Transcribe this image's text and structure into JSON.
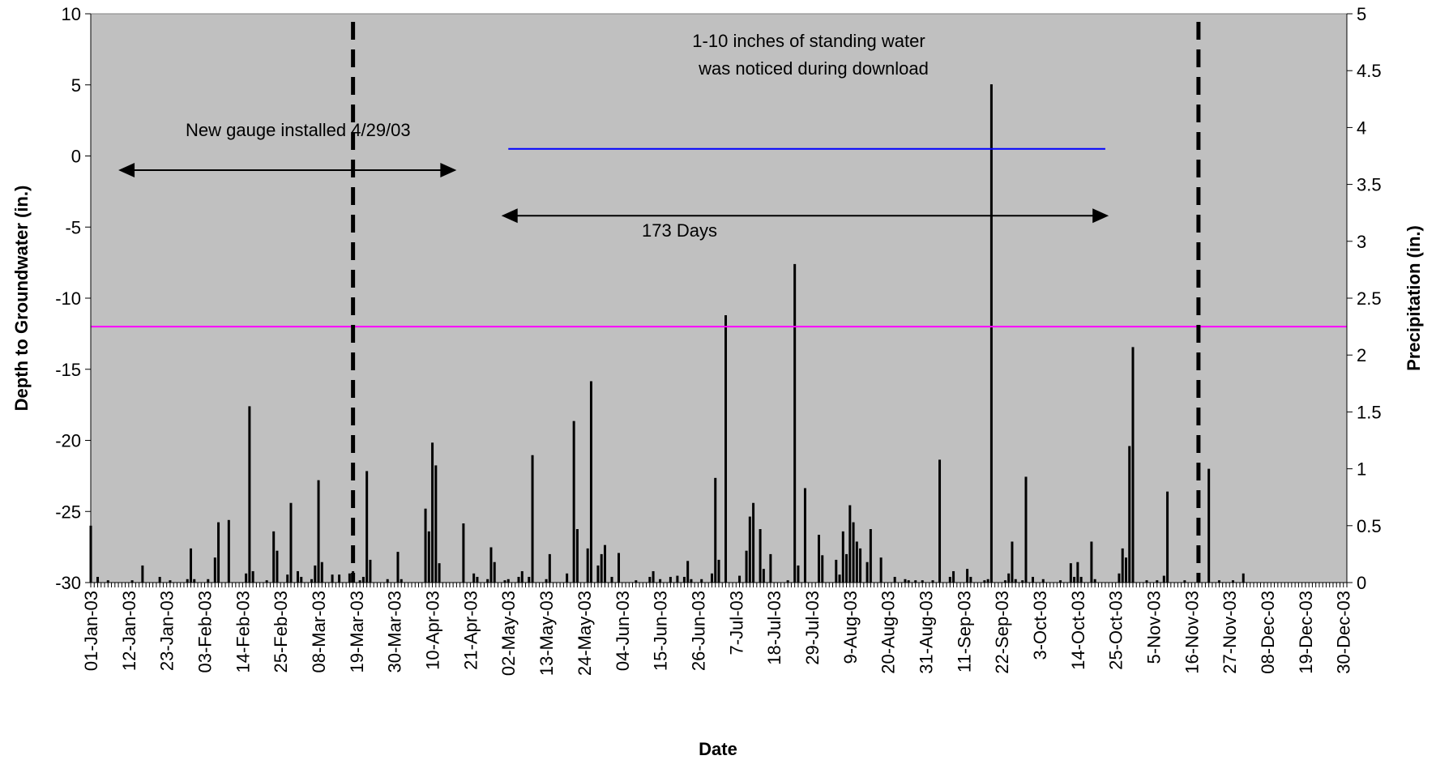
{
  "chart_data": {
    "type": "bar",
    "xlabel": "Date",
    "ylabel_left": "Depth to Groundwater (in.)",
    "ylabel_right": "Precipitation (in.)",
    "y_left_range": [
      -30,
      10
    ],
    "y_left_ticks": [
      "10",
      "5",
      "0",
      "-5",
      "-10",
      "-15",
      "-20",
      "-25",
      "-30"
    ],
    "y_right_range": [
      0,
      5
    ],
    "y_right_ticks": [
      "5",
      "4.5",
      "4",
      "3.5",
      "3",
      "2.5",
      "2",
      "1.5",
      "1",
      "0.5",
      "0"
    ],
    "x_range_days": [
      1,
      365
    ],
    "x_tick_labels": [
      "01-Jan-03",
      "12-Jan-03",
      "23-Jan-03",
      "03-Feb-03",
      "14-Feb-03",
      "25-Feb-03",
      "08-Mar-03",
      "19-Mar-03",
      "30-Mar-03",
      "10-Apr-03",
      "21-Apr-03",
      "02-May-03",
      "13-May-03",
      "24-May-03",
      "04-Jun-03",
      "15-Jun-03",
      "26-Jun-03",
      "7-Jul-03",
      "18-Jul-03",
      "29-Jul-03",
      "9-Aug-03",
      "20-Aug-03",
      "31-Aug-03",
      "11-Sep-03",
      "22-Sep-03",
      "3-Oct-03",
      "14-Oct-03",
      "25-Oct-03",
      "5-Nov-03",
      "16-Nov-03",
      "27-Nov-03",
      "08-Dec-03",
      "19-Dec-03",
      "30-Dec-03"
    ],
    "x_tick_days": [
      1,
      12,
      23,
      34,
      45,
      56,
      67,
      78,
      89,
      100,
      111,
      122,
      133,
      144,
      155,
      166,
      177,
      188,
      199,
      210,
      221,
      232,
      243,
      254,
      265,
      276,
      287,
      298,
      309,
      320,
      331,
      342,
      353,
      364
    ],
    "precipitation": [
      {
        "day": 1,
        "value": 0.5
      },
      {
        "day": 3,
        "value": 0.05
      },
      {
        "day": 6,
        "value": 0.02
      },
      {
        "day": 13,
        "value": 0.02
      },
      {
        "day": 16,
        "value": 0.15
      },
      {
        "day": 21,
        "value": 0.05
      },
      {
        "day": 24,
        "value": 0.02
      },
      {
        "day": 29,
        "value": 0.03
      },
      {
        "day": 30,
        "value": 0.3
      },
      {
        "day": 31,
        "value": 0.03
      },
      {
        "day": 35,
        "value": 0.03
      },
      {
        "day": 37,
        "value": 0.22
      },
      {
        "day": 38,
        "value": 0.53
      },
      {
        "day": 41,
        "value": 0.55
      },
      {
        "day": 46,
        "value": 0.08
      },
      {
        "day": 47,
        "value": 1.55
      },
      {
        "day": 48,
        "value": 0.1
      },
      {
        "day": 52,
        "value": 0.02
      },
      {
        "day": 54,
        "value": 0.45
      },
      {
        "day": 55,
        "value": 0.28
      },
      {
        "day": 58,
        "value": 0.07
      },
      {
        "day": 59,
        "value": 0.7
      },
      {
        "day": 61,
        "value": 0.1
      },
      {
        "day": 62,
        "value": 0.05
      },
      {
        "day": 65,
        "value": 0.03
      },
      {
        "day": 66,
        "value": 0.15
      },
      {
        "day": 67,
        "value": 0.9
      },
      {
        "day": 68,
        "value": 0.18
      },
      {
        "day": 71,
        "value": 0.07
      },
      {
        "day": 73,
        "value": 0.07
      },
      {
        "day": 76,
        "value": 0.08
      },
      {
        "day": 77,
        "value": 0.1
      },
      {
        "day": 79,
        "value": 0.02
      },
      {
        "day": 80,
        "value": 0.05
      },
      {
        "day": 81,
        "value": 0.98
      },
      {
        "day": 82,
        "value": 0.2
      },
      {
        "day": 87,
        "value": 0.03
      },
      {
        "day": 90,
        "value": 0.27
      },
      {
        "day": 91,
        "value": 0.03
      },
      {
        "day": 98,
        "value": 0.65
      },
      {
        "day": 99,
        "value": 0.45
      },
      {
        "day": 100,
        "value": 1.23
      },
      {
        "day": 101,
        "value": 1.03
      },
      {
        "day": 102,
        "value": 0.17
      },
      {
        "day": 109,
        "value": 0.52
      },
      {
        "day": 112,
        "value": 0.08
      },
      {
        "day": 113,
        "value": 0.05
      },
      {
        "day": 116,
        "value": 0.03
      },
      {
        "day": 117,
        "value": 0.31
      },
      {
        "day": 118,
        "value": 0.18
      },
      {
        "day": 121,
        "value": 0.02
      },
      {
        "day": 122,
        "value": 0.03
      },
      {
        "day": 125,
        "value": 0.05
      },
      {
        "day": 126,
        "value": 0.1
      },
      {
        "day": 128,
        "value": 0.05
      },
      {
        "day": 129,
        "value": 1.12
      },
      {
        "day": 133,
        "value": 0.03
      },
      {
        "day": 134,
        "value": 0.25
      },
      {
        "day": 139,
        "value": 0.08
      },
      {
        "day": 141,
        "value": 1.42
      },
      {
        "day": 142,
        "value": 0.47
      },
      {
        "day": 145,
        "value": 0.3
      },
      {
        "day": 146,
        "value": 1.77
      },
      {
        "day": 148,
        "value": 0.15
      },
      {
        "day": 149,
        "value": 0.25
      },
      {
        "day": 150,
        "value": 0.33
      },
      {
        "day": 152,
        "value": 0.05
      },
      {
        "day": 154,
        "value": 0.26
      },
      {
        "day": 159,
        "value": 0.02
      },
      {
        "day": 163,
        "value": 0.05
      },
      {
        "day": 164,
        "value": 0.1
      },
      {
        "day": 166,
        "value": 0.03
      },
      {
        "day": 169,
        "value": 0.05
      },
      {
        "day": 171,
        "value": 0.06
      },
      {
        "day": 173,
        "value": 0.05
      },
      {
        "day": 174,
        "value": 0.19
      },
      {
        "day": 175,
        "value": 0.03
      },
      {
        "day": 178,
        "value": 0.03
      },
      {
        "day": 181,
        "value": 0.08
      },
      {
        "day": 182,
        "value": 0.92
      },
      {
        "day": 183,
        "value": 0.2
      },
      {
        "day": 185,
        "value": 2.35
      },
      {
        "day": 189,
        "value": 0.06
      },
      {
        "day": 191,
        "value": 0.28
      },
      {
        "day": 192,
        "value": 0.58
      },
      {
        "day": 193,
        "value": 0.7
      },
      {
        "day": 195,
        "value": 0.47
      },
      {
        "day": 196,
        "value": 0.12
      },
      {
        "day": 198,
        "value": 0.25
      },
      {
        "day": 203,
        "value": 0.02
      },
      {
        "day": 205,
        "value": 2.8
      },
      {
        "day": 206,
        "value": 0.15
      },
      {
        "day": 208,
        "value": 0.83
      },
      {
        "day": 212,
        "value": 0.42
      },
      {
        "day": 213,
        "value": 0.24
      },
      {
        "day": 217,
        "value": 0.2
      },
      {
        "day": 218,
        "value": 0.07
      },
      {
        "day": 219,
        "value": 0.45
      },
      {
        "day": 220,
        "value": 0.25
      },
      {
        "day": 221,
        "value": 0.68
      },
      {
        "day": 222,
        "value": 0.53
      },
      {
        "day": 223,
        "value": 0.36
      },
      {
        "day": 224,
        "value": 0.3
      },
      {
        "day": 226,
        "value": 0.18
      },
      {
        "day": 227,
        "value": 0.47
      },
      {
        "day": 230,
        "value": 0.22
      },
      {
        "day": 234,
        "value": 0.05
      },
      {
        "day": 237,
        "value": 0.03
      },
      {
        "day": 238,
        "value": 0.02
      },
      {
        "day": 240,
        "value": 0.02
      },
      {
        "day": 242,
        "value": 0.02
      },
      {
        "day": 245,
        "value": 0.02
      },
      {
        "day": 247,
        "value": 1.08
      },
      {
        "day": 250,
        "value": 0.05
      },
      {
        "day": 251,
        "value": 0.1
      },
      {
        "day": 255,
        "value": 0.12
      },
      {
        "day": 256,
        "value": 0.05
      },
      {
        "day": 260,
        "value": 0.02
      },
      {
        "day": 261,
        "value": 0.03
      },
      {
        "day": 262,
        "value": 4.38
      },
      {
        "day": 266,
        "value": 0.02
      },
      {
        "day": 267,
        "value": 0.08
      },
      {
        "day": 268,
        "value": 0.36
      },
      {
        "day": 269,
        "value": 0.03
      },
      {
        "day": 271,
        "value": 0.02
      },
      {
        "day": 272,
        "value": 0.93
      },
      {
        "day": 274,
        "value": 0.05
      },
      {
        "day": 277,
        "value": 0.03
      },
      {
        "day": 282,
        "value": 0.02
      },
      {
        "day": 285,
        "value": 0.17
      },
      {
        "day": 286,
        "value": 0.05
      },
      {
        "day": 287,
        "value": 0.18
      },
      {
        "day": 288,
        "value": 0.05
      },
      {
        "day": 291,
        "value": 0.36
      },
      {
        "day": 292,
        "value": 0.03
      },
      {
        "day": 299,
        "value": 0.08
      },
      {
        "day": 300,
        "value": 0.3
      },
      {
        "day": 301,
        "value": 0.22
      },
      {
        "day": 302,
        "value": 1.2
      },
      {
        "day": 303,
        "value": 2.07
      },
      {
        "day": 307,
        "value": 0.02
      },
      {
        "day": 310,
        "value": 0.02
      },
      {
        "day": 312,
        "value": 0.06
      },
      {
        "day": 313,
        "value": 0.8
      },
      {
        "day": 318,
        "value": 0.02
      },
      {
        "day": 325,
        "value": 1.0
      },
      {
        "day": 328,
        "value": 0.02
      },
      {
        "day": 332,
        "value": 0.02
      },
      {
        "day": 335,
        "value": 0.08
      }
    ],
    "horizontal_lines": [
      {
        "name": "Depth to Groundwater",
        "y": 0.5,
        "x_range_days": [
          122,
          295
        ],
        "color": "#0000ff"
      },
      {
        "name": "Threshold",
        "y": -12,
        "x_range_days": [
          1,
          365
        ],
        "color": "#ff00ff"
      }
    ],
    "vertical_dashed_lines_days": [
      77,
      322
    ],
    "annotations": {
      "gauge_text": "New gauge installed 4/29/03",
      "days_text": "173 Days",
      "standing_water_line1": "1-10 inches of standing water",
      "standing_water_line2": "was noticed during download"
    },
    "arrows": [
      {
        "name": "gauge-arrow",
        "x_range_days": [
          9,
          107
        ],
        "y": -1
      },
      {
        "name": "days-arrow",
        "x_range_days": [
          120,
          296
        ],
        "y": -4.2
      }
    ],
    "colors": {
      "plot_background": "#c0c0c0",
      "bars": "#000000",
      "blue_line": "#0000ff",
      "magenta_line": "#ff00ff"
    }
  }
}
